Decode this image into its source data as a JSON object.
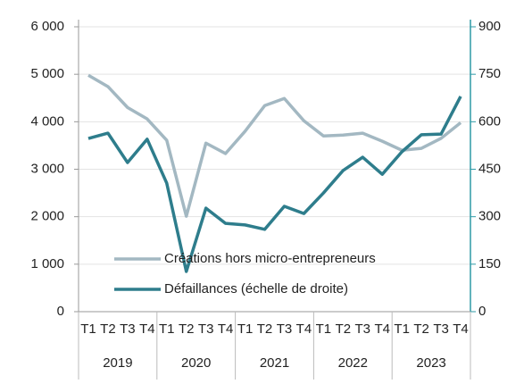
{
  "chart_data": {
    "type": "line",
    "categories": [
      "T1",
      "T2",
      "T3",
      "T4",
      "T1",
      "T2",
      "T3",
      "T4",
      "T1",
      "T2",
      "T3",
      "T4",
      "T1",
      "T2",
      "T3",
      "T4",
      "T1",
      "T2",
      "T3",
      "T4"
    ],
    "groups": [
      "2019",
      "2020",
      "2021",
      "2022",
      "2023"
    ],
    "series": [
      {
        "name": "Créations hors micro-entrepreneurs",
        "color": "#a3b8c2",
        "values": [
          4980,
          4740,
          4300,
          4060,
          3610,
          2010,
          3550,
          3330,
          3800,
          4340,
          4490,
          4020,
          3700,
          3720,
          3760,
          3590,
          3400,
          3440,
          3650,
          3980
        ]
      },
      {
        "name": "Défaillances (échelle de droite)",
        "color": "#2e7d8c",
        "axis": "y2",
        "values": [
          547,
          564,
          471,
          545,
          406,
          127,
          327,
          279,
          274,
          260,
          333,
          310,
          375,
          446,
          488,
          434,
          505,
          559,
          561,
          680
        ]
      }
    ],
    "ylim": [
      0,
      6000
    ],
    "yticks": [
      0,
      {
        "value": 1000,
        "label": "1 000"
      },
      {
        "value": 2000,
        "label": "2 000"
      },
      {
        "value": 3000,
        "label": "3 000"
      },
      {
        "value": 4000,
        "label": "4 000"
      },
      {
        "value": 5000,
        "label": "5 000"
      },
      {
        "value": 6000,
        "label": "6 000"
      }
    ],
    "y2lim": [
      0,
      900
    ],
    "y2ticks": [
      0,
      150,
      300,
      450,
      600,
      750,
      900
    ],
    "y2color": "#2e9aa6",
    "grid": true,
    "legend": "lower left"
  }
}
